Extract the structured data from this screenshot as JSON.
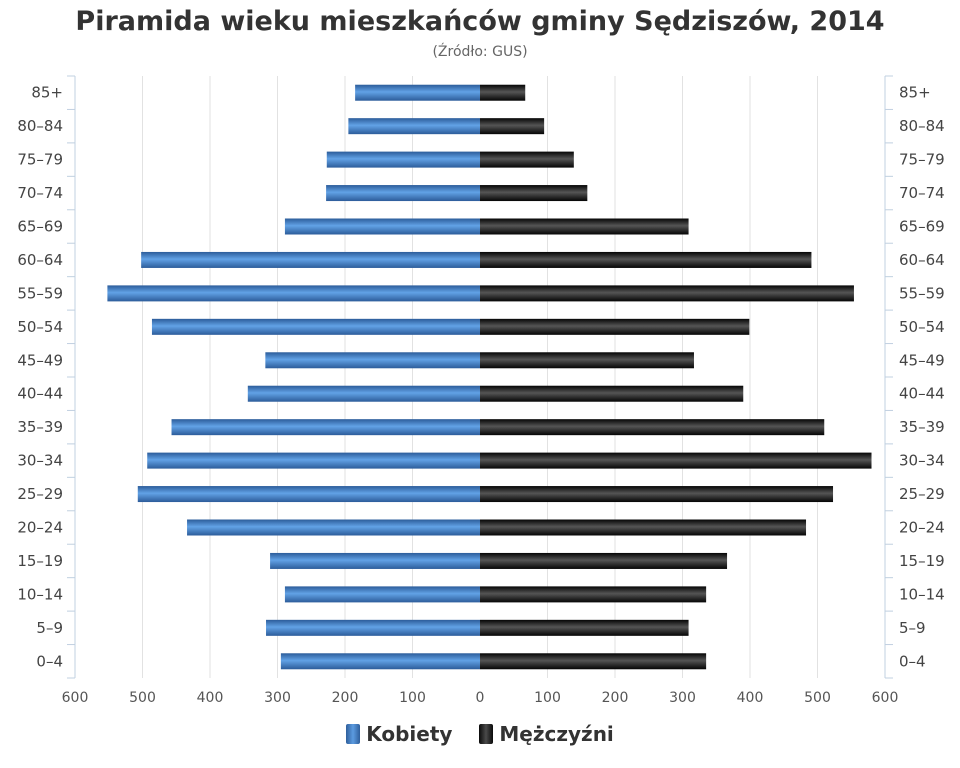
{
  "chart_data": {
    "type": "bar",
    "orientation": "horizontal-population-pyramid",
    "title": "Piramida wieku mieszkańców gminy Sędziszów, 2014",
    "subtitle": "(Źródło: GUS)",
    "categories": [
      "0–4",
      "5–9",
      "10–14",
      "15–19",
      "20–24",
      "25–29",
      "30–34",
      "35–39",
      "40–44",
      "45–49",
      "50–54",
      "55–59",
      "60–64",
      "65–69",
      "70–74",
      "75–79",
      "80–84",
      "85+"
    ],
    "series": [
      {
        "name": "Kobiety",
        "side": "left",
        "values": [
          295,
          317,
          289,
          311,
          434,
          507,
          493,
          457,
          344,
          318,
          486,
          552,
          502,
          289,
          228,
          227,
          195,
          185
        ]
      },
      {
        "name": "Mężczyźni",
        "side": "right",
        "values": [
          335,
          309,
          335,
          366,
          483,
          523,
          580,
          510,
          390,
          317,
          399,
          554,
          491,
          309,
          159,
          139,
          95,
          67
        ]
      }
    ],
    "x_ticks": [
      "600",
      "500",
      "400",
      "300",
      "200",
      "100",
      "0",
      "100",
      "200",
      "300",
      "400",
      "500",
      "600"
    ],
    "xlim": [
      -600,
      600
    ],
    "grid": true,
    "legend_position": "bottom",
    "colors": {
      "women": "#3f78c0",
      "men": "#1a1a1a",
      "grid": "#e2e2e2",
      "axis": "#c0d0e0"
    }
  }
}
